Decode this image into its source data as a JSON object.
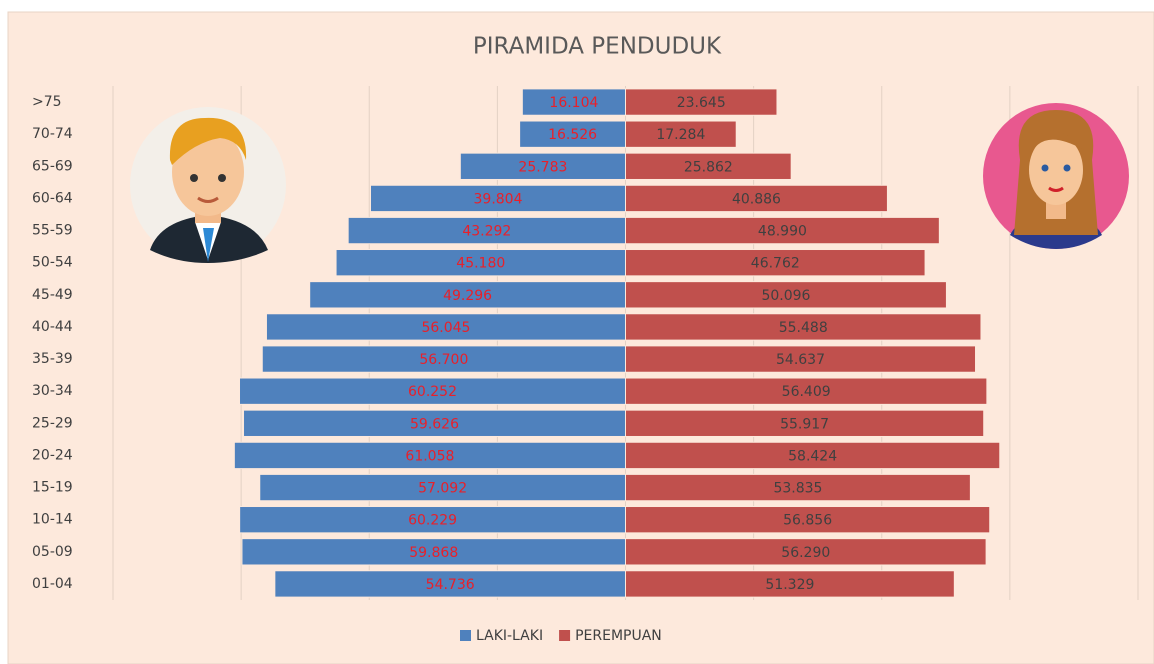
{
  "chart_data": {
    "type": "pyramid",
    "title": "PIRAMIDA PENDUDUK",
    "categories": [
      ">75",
      "70-74",
      "65-69",
      "60-64",
      "55-59",
      "50-54",
      "45-49",
      "40-44",
      "35-39",
      "30-34",
      "25-29",
      "20-24",
      "15-19",
      "10-14",
      "05-09",
      "01-04"
    ],
    "series": [
      {
        "name": "LAKI-LAKI",
        "color": "#4f81bd",
        "label_color": "#e8202a",
        "values": [
          16104,
          16526,
          25783,
          39804,
          43292,
          45180,
          49296,
          56045,
          56700,
          60252,
          59626,
          61058,
          57092,
          60229,
          59868,
          54736
        ],
        "value_labels": [
          "16.104",
          "16.526",
          "25.783",
          "39.804",
          "43.292",
          "45.180",
          "49.296",
          "56.045",
          "56.700",
          "60.252",
          "59.626",
          "61.058",
          "57.092",
          "60.229",
          "59.868",
          "54.736"
        ]
      },
      {
        "name": "PEREMPUAN",
        "color": "#c0504d",
        "label_color": "#404040",
        "values": [
          23645,
          17284,
          25862,
          40886,
          48990,
          46762,
          50096,
          55488,
          54637,
          56409,
          55917,
          58424,
          53835,
          56856,
          56290,
          51329
        ],
        "value_labels": [
          "23.645",
          "17.284",
          "25.862",
          "40.886",
          "48.990",
          "46.762",
          "50.096",
          "55.488",
          "54.637",
          "56.409",
          "55.917",
          "58.424",
          "53.835",
          "56.856",
          "56.290",
          "51.329"
        ]
      }
    ],
    "xlim": [
      -80000,
      80000
    ],
    "xticks": [
      -80000,
      -60000,
      -40000,
      -20000,
      0,
      20000,
      40000,
      60000,
      80000
    ],
    "grid": true
  }
}
